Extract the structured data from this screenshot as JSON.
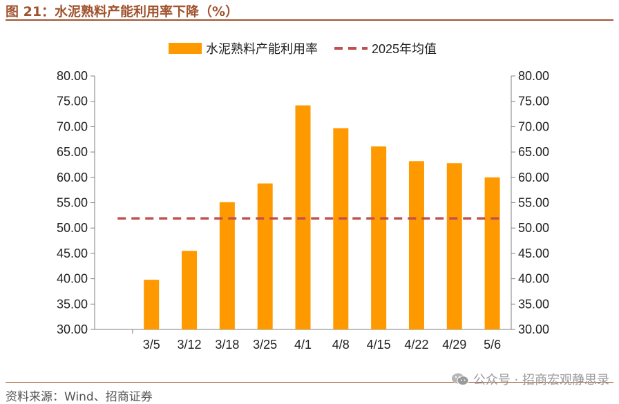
{
  "header": {
    "figure_title": "图 21：水泥熟料产能利用率下降（%）"
  },
  "footer": {
    "source": "资料来源：Wind、招商证券",
    "watermark": "公众号 · 招商宏观静思录",
    "watermark_icon": "wechat-icon"
  },
  "colors": {
    "bar": "#FF9900",
    "ref_line": "#C0504D",
    "title": "#A0522D",
    "axis": "#7F7F7F"
  },
  "chart_data": {
    "type": "bar",
    "title": "",
    "xlabel": "",
    "ylabel": "",
    "categories": [
      "3/5",
      "3/12",
      "3/18",
      "3/25",
      "4/1",
      "4/8",
      "4/15",
      "4/22",
      "4/29",
      "5/6"
    ],
    "series": [
      {
        "name": "水泥熟料产能利用率",
        "type": "bar",
        "values": [
          39.8,
          45.5,
          55.1,
          58.8,
          74.2,
          69.7,
          66.1,
          63.2,
          62.8,
          60.0
        ]
      },
      {
        "name": "2025年均值",
        "type": "line",
        "style": "dashed",
        "values_constant": 51.9
      }
    ],
    "ylim": [
      30,
      80
    ],
    "yticks": [
      "30.00",
      "35.00",
      "40.00",
      "45.00",
      "50.00",
      "55.00",
      "60.00",
      "65.00",
      "70.00",
      "75.00",
      "80.00"
    ],
    "secondary_yaxis": true,
    "grid": false,
    "legend_position": "top-center"
  }
}
